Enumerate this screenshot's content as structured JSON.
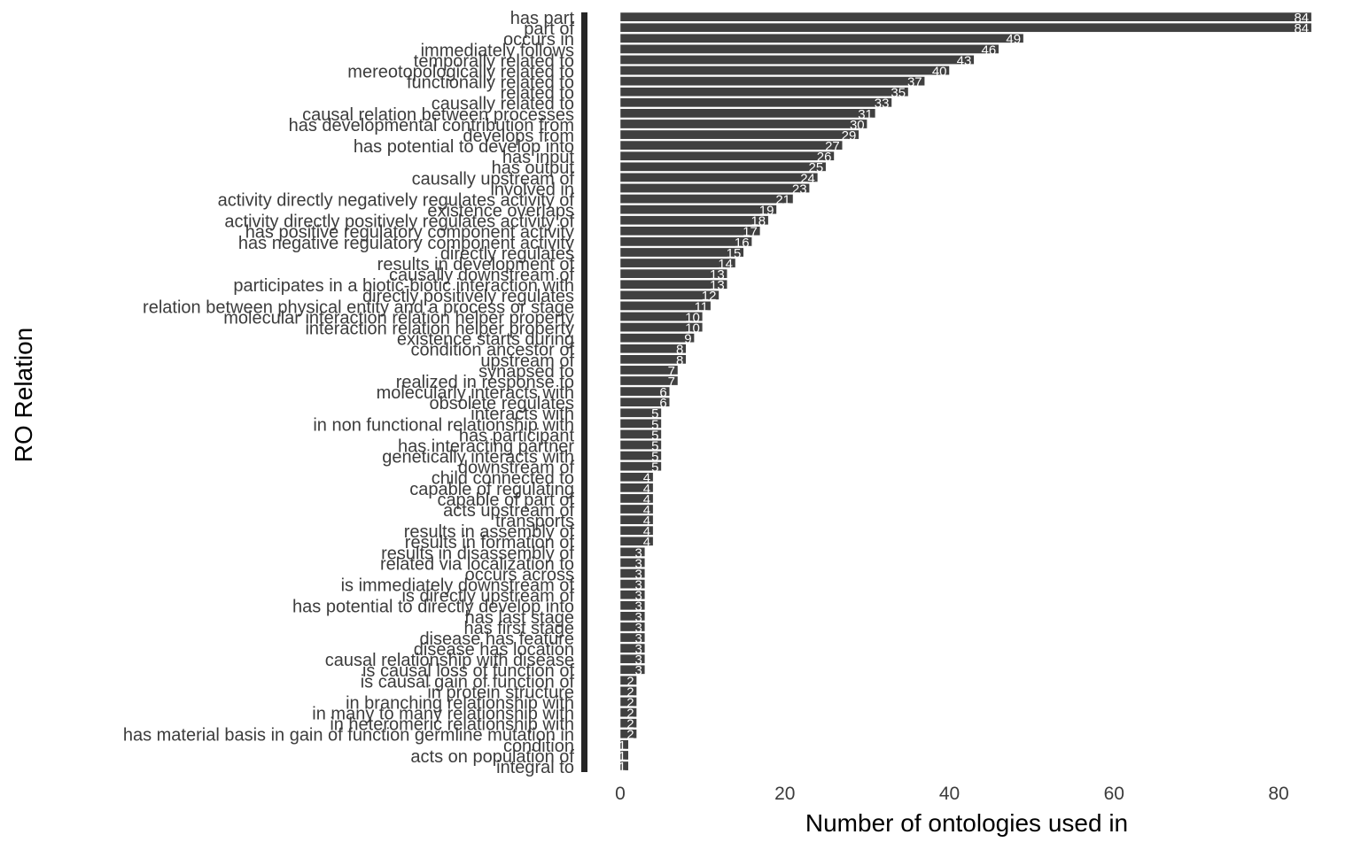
{
  "chart_data": {
    "type": "bar",
    "orientation": "horizontal",
    "xlabel": "Number of ontologies used in",
    "ylabel": "RO Relation",
    "xlim": [
      0,
      84
    ],
    "x_ticks": [
      "0",
      "20",
      "40",
      "60",
      "80"
    ],
    "grid": false,
    "legend": "none",
    "bar_color": "#404040",
    "label_color": "#3c3c3c",
    "categories": [
      "has part",
      "part of",
      "occurs in",
      "immediately follows",
      "temporally related to",
      "mereotopologically related to",
      "functionally related to",
      "related to",
      "causally related to",
      "causal relation between processes",
      "has developmental contribution from",
      "develops from",
      "has potential to develop into",
      "has input",
      "has output",
      "causally upstream of",
      "involved in",
      "activity directly negatively regulates activity of",
      "existence overlaps",
      "activity directly positively regulates activity of",
      "has positive regulatory component activity",
      "has negative regulatory component activity",
      "directly regulates",
      "results in development of",
      "causally downstream of",
      "participates in a biotic-biotic interaction with",
      "directly positively regulates",
      "relation between physical entity and a process or stage",
      "molecular interaction relation helper property",
      "interaction relation helper property",
      "existence starts during",
      "condition ancestor of",
      "upstream of",
      "synapsed to",
      "realized in response to",
      "molecularly interacts with",
      "obsolete regulates",
      "interacts with",
      "in non functional relationship with",
      "has participant",
      "has interacting partner",
      "genetically interacts with",
      "downstream of",
      "child connected to",
      "capable of regulating",
      "capable of part of",
      "acts upstream of",
      "transports",
      "results in assembly of",
      "results in formation of",
      "results in disassembly of",
      "related via localization to",
      "occurs across",
      "is immediately downstream of",
      "is directly upstream of",
      "has potential to directly develop into",
      "has last stage",
      "has first stage",
      "disease has feature",
      "disease has location",
      "causal relationship with disease",
      "is causal loss of function of",
      "is causal gain of function of",
      "in protein structure",
      "in branching relationship with",
      "in many to many relationship with",
      "in heteromeric relationship with",
      "has material basis in gain of function germline mutation in",
      "condition",
      "acts on population of",
      "integral to"
    ],
    "values": [
      84,
      84,
      49,
      46,
      43,
      40,
      37,
      35,
      33,
      31,
      30,
      29,
      27,
      26,
      25,
      24,
      23,
      21,
      19,
      18,
      17,
      16,
      15,
      14,
      13,
      13,
      12,
      11,
      10,
      10,
      9,
      8,
      8,
      7,
      7,
      6,
      6,
      5,
      5,
      5,
      5,
      5,
      5,
      4,
      4,
      4,
      4,
      4,
      4,
      4,
      3,
      3,
      3,
      3,
      3,
      3,
      3,
      3,
      3,
      3,
      3,
      3,
      2,
      2,
      2,
      2,
      2,
      2,
      1,
      1,
      1
    ],
    "labeled_categories": [
      "has part",
      "part of",
      "immediately follows",
      "temporally related to",
      "mereotopologically related to",
      "related to",
      "causal relation between processes",
      "has developmental contribution from",
      "has potential to develop into",
      "causally upstream of",
      "involved in",
      "activity directly negatively regulates activity of",
      "existence overlaps",
      "activity directly positively regulates activity of",
      "has positive regulatory component activity",
      "has negative regulatory component activity",
      "directly regulates",
      "results in development of",
      "causally downstream of",
      "participates in a biotic-biotic interaction with",
      "relation between physical entity and a process or stage",
      "molecular interaction relation helper property",
      "interaction relation helper property",
      "condition ancestor of",
      "upstream of",
      "synapsed to",
      "realized in response to",
      "obsolete regulates",
      "interacts with",
      "in non functional relationship with",
      "has participant",
      "has interacting partner",
      "genetically interacts with",
      "downstream of",
      "capable of regulating",
      "capable of part of",
      "acts upstream of",
      "results in assembly of",
      "results in disassembly of",
      "related via localization to",
      "is immediately downstream of",
      "has potential to directly develop into",
      "has last stage",
      "has first stage",
      "disease has feature",
      "causal relationship with disease",
      "is causal loss of function of",
      "is causal gain of function of",
      "in protein structure",
      "in many to many relationship with",
      "in heteromeric relationship with",
      "has material basis in gain of function germline mutation in",
      "condition",
      "acts on population of",
      "integral to"
    ]
  }
}
